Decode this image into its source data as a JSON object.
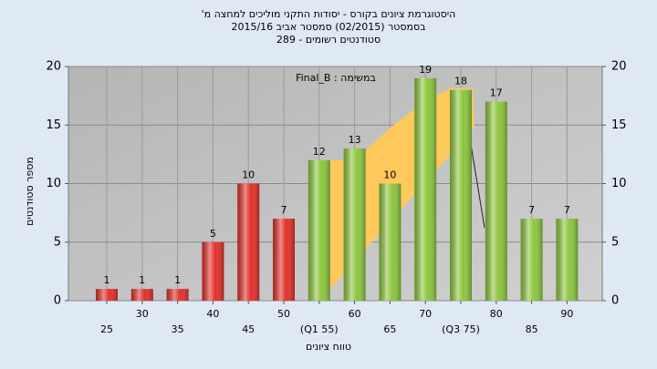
{
  "chart_data": {
    "type": "bar",
    "title": [
      "היסטוגרמת ציונים בקורס - יסודות התקני מוליכים למחצה מ'",
      "בסמסטר  (02/2015)  סמסטר אביב 2015/16",
      "סטודנטים רשומים - 289"
    ],
    "annotation": "במשימה : Final_B",
    "x_label": "טווח ציונים",
    "y_label": "מספר סטודנטים",
    "categories": [
      "25",
      "30",
      "35",
      "40",
      "45",
      "50",
      "(Q1 55)",
      "60",
      "65",
      "70",
      "(Q3 75)",
      "80",
      "85",
      "90"
    ],
    "values": [
      1,
      1,
      1,
      5,
      10,
      7,
      12,
      13,
      10,
      19,
      18,
      17,
      7,
      7
    ],
    "colors": [
      "#e3312b",
      "#e3312b",
      "#e3312b",
      "#e3312b",
      "#e3312b",
      "#e3312b",
      "#8dc63f",
      "#8dc63f",
      "#8dc63f",
      "#8dc63f",
      "#8dc63f",
      "#8dc63f",
      "#8dc63f",
      "#8dc63f"
    ],
    "ylim": [
      0,
      20
    ],
    "yticks": [
      0,
      5,
      10,
      15,
      20
    ],
    "y2lim": [
      0,
      20
    ],
    "y2ticks": [
      0,
      5,
      10,
      15,
      20
    ],
    "grid": true
  }
}
